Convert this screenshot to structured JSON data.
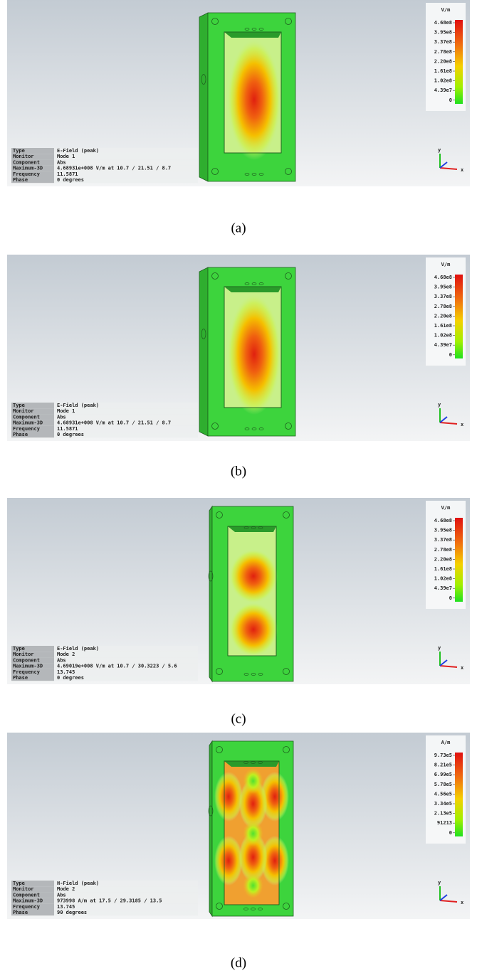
{
  "axis_labels": {
    "y": "y",
    "x": "x"
  },
  "panels": [
    {
      "caption": "(a)",
      "legend": {
        "unit": "V/m",
        "ticks": [
          "4.68e8",
          "3.95e8",
          "3.37e8",
          "2.78e8",
          "2.20e8",
          "1.61e8",
          "1.02e8",
          "4.39e7",
          "0"
        ]
      },
      "info": [
        [
          "Type",
          "E-Field (peak)"
        ],
        [
          "Monitor",
          "Mode 1"
        ],
        [
          "Component",
          "Abs"
        ],
        [
          "Maximum-3D",
          "4.68931e+008 V/m at 10.7 / 21.51 / 8.7"
        ],
        [
          "Frequency",
          "11.5871"
        ],
        [
          "Phase",
          "0 degrees"
        ]
      ]
    },
    {
      "caption": "(b)",
      "legend": {
        "unit": "V/m",
        "ticks": [
          "4.68e8",
          "3.95e8",
          "3.37e8",
          "2.78e8",
          "2.20e8",
          "1.61e8",
          "1.02e8",
          "4.39e7",
          "0"
        ]
      },
      "info": [
        [
          "Type",
          "E-Field (peak)"
        ],
        [
          "Monitor",
          "Mode 1"
        ],
        [
          "Component",
          "Abs"
        ],
        [
          "Maximum-3D",
          "4.68931e+008 V/m at 10.7 / 21.51 / 8.7"
        ],
        [
          "Frequency",
          "11.5871"
        ],
        [
          "Phase",
          "0 degrees"
        ]
      ]
    },
    {
      "caption": "(c)",
      "legend": {
        "unit": "V/m",
        "ticks": [
          "4.68e8",
          "3.95e8",
          "3.37e8",
          "2.78e8",
          "2.20e8",
          "1.61e8",
          "1.02e8",
          "4.39e7",
          "0"
        ]
      },
      "info": [
        [
          "Type",
          "E-Field (peak)"
        ],
        [
          "Monitor",
          "Mode 2"
        ],
        [
          "Component",
          "Abs"
        ],
        [
          "Maximum-3D",
          "4.69019e+008 V/m at 10.7 / 30.3223 / 5.6"
        ],
        [
          "Frequency",
          "13.745"
        ],
        [
          "Phase",
          "0 degrees"
        ]
      ]
    },
    {
      "caption": "(d)",
      "legend": {
        "unit": "A/m",
        "ticks": [
          "9.73e5",
          "8.21e5",
          "6.99e5",
          "5.78e5",
          "4.56e5",
          "3.34e5",
          "2.13e5",
          "91213",
          "0"
        ]
      },
      "info": [
        [
          "Type",
          "H-Field (peak)"
        ],
        [
          "Monitor",
          "Mode 2"
        ],
        [
          "Component",
          "Abs"
        ],
        [
          "Maximum-3D",
          "973998 A/m at 17.5 / 29.3185 / 13.5"
        ],
        [
          "Frequency",
          "13.745"
        ],
        [
          "Phase",
          "90 degrees"
        ]
      ]
    }
  ]
}
